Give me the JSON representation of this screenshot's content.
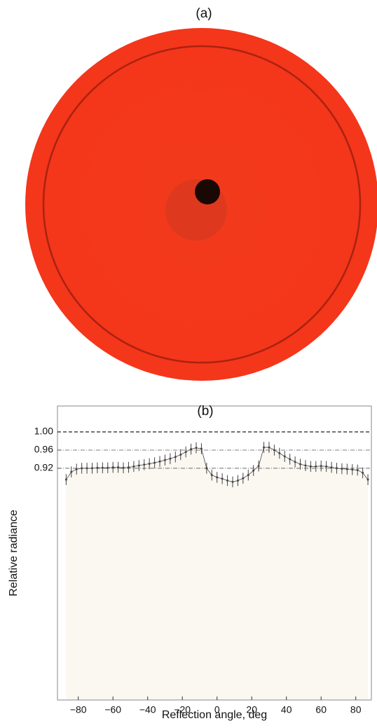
{
  "panel_a": {
    "label": "(a)"
  },
  "chart_data": {
    "type": "errorbar",
    "title": "(b)",
    "x_label": "Reflection angle, deg",
    "y_label": "Relative radiance",
    "xlim": [
      -92,
      89
    ],
    "ylim": [
      0.41,
      1.057
    ],
    "xticks": [
      {
        "value": -80,
        "label": "−80"
      },
      {
        "value": -60,
        "label": "−60"
      },
      {
        "value": -40,
        "label": "−40"
      },
      {
        "value": -20,
        "label": "−20"
      },
      0,
      20,
      40,
      60,
      80
    ],
    "yticks": [
      {
        "value": 1.0,
        "label": "1.00"
      },
      {
        "value": 0.96,
        "label": "0.96"
      },
      {
        "value": 0.92,
        "label": "0.92"
      }
    ],
    "grid": true,
    "error": 0.012,
    "fill_color": "#fbf7f1",
    "x": [
      -87,
      -84,
      -81,
      -78,
      -75,
      -72,
      -69,
      -66,
      -63,
      -60,
      -57,
      -54,
      -51,
      -48,
      -45,
      -42,
      -39,
      -36,
      -33,
      -30,
      -27,
      -24,
      -21,
      -18,
      -15,
      -12,
      -9,
      -6,
      -3,
      0,
      3,
      6,
      9,
      12,
      15,
      18,
      21,
      24,
      27,
      30,
      33,
      36,
      39,
      42,
      45,
      48,
      51,
      54,
      57,
      60,
      63,
      66,
      69,
      72,
      75,
      78,
      81,
      84,
      87
    ],
    "series": [
      {
        "color": "#444444",
        "values": [
          0.895,
          0.912,
          0.918,
          0.92,
          0.92,
          0.92,
          0.921,
          0.921,
          0.921,
          0.922,
          0.922,
          0.921,
          0.922,
          0.924,
          0.926,
          0.928,
          0.93,
          0.932,
          0.935,
          0.938,
          0.941,
          0.945,
          0.95,
          0.956,
          0.962,
          0.965,
          0.963,
          0.92,
          0.905,
          0.9,
          0.897,
          0.893,
          0.89,
          0.893,
          0.898,
          0.905,
          0.915,
          0.925,
          0.966,
          0.966,
          0.96,
          0.953,
          0.946,
          0.94,
          0.934,
          0.929,
          0.926,
          0.924,
          0.924,
          0.925,
          0.924,
          0.922,
          0.92,
          0.919,
          0.918,
          0.917,
          0.916,
          0.91,
          0.895
        ]
      }
    ]
  }
}
